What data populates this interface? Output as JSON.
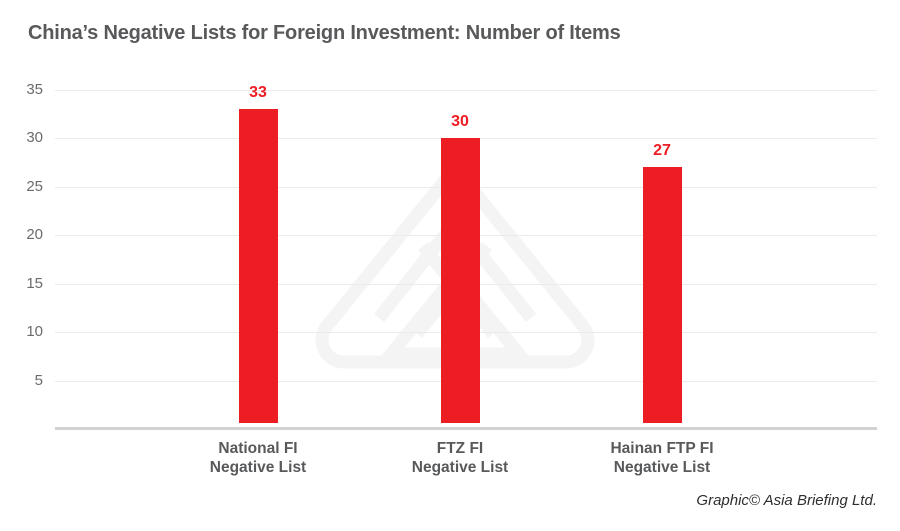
{
  "title": "China’s Negative Lists for Foreign Investment: Number of Items",
  "credit": "Graphic© Asia Briefing Ltd.",
  "watermark_name": "asia-briefing-logo",
  "colors": {
    "bg": "#ffffff",
    "bar": "#ed1d24",
    "title": "#58595b",
    "axis": "#6a6b6d",
    "category": "#58595b",
    "grid": "#ebebeb",
    "baseline": "#d2d2d2",
    "watermark": "#f4f4f4",
    "credit": "#2e2e2e"
  },
  "chart_data": {
    "type": "bar",
    "title": "China’s Negative Lists for Foreign Investment: Number of Items",
    "categories": [
      "National FI\nNegative List",
      "FTZ FI\nNegative List",
      "Hainan FTP FI\nNegative List"
    ],
    "values": [
      33,
      30,
      27
    ],
    "value_labels": [
      "33",
      "30",
      "27"
    ],
    "xlabel": "",
    "ylabel": "",
    "ylim": [
      0,
      35
    ],
    "yticks": [
      5,
      10,
      15,
      20,
      25,
      30,
      35
    ],
    "grid": true,
    "legend": false,
    "bar_color": "#ed1d24"
  }
}
